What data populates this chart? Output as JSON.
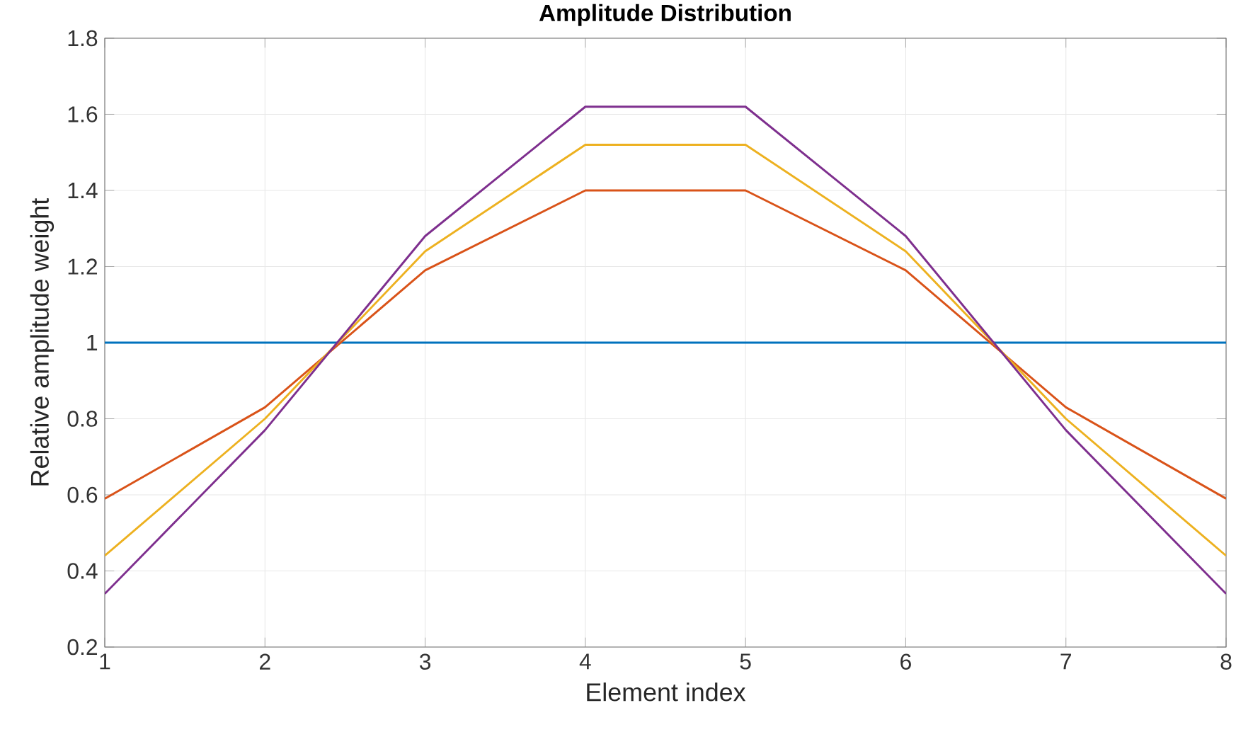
{
  "chart_data": {
    "type": "line",
    "title": "Amplitude Distribution",
    "xlabel": "Element index",
    "ylabel": "Relative amplitude weight",
    "x": [
      1,
      2,
      3,
      4,
      5,
      6,
      7,
      8
    ],
    "series": [
      {
        "color": "#0072bd",
        "values": [
          1,
          1,
          1,
          1,
          1,
          1,
          1,
          1
        ]
      },
      {
        "color": "#d95319",
        "values": [
          0.59,
          0.83,
          1.19,
          1.4,
          1.4,
          1.19,
          0.83,
          0.59
        ]
      },
      {
        "color": "#edb120",
        "values": [
          0.44,
          0.8,
          1.24,
          1.52,
          1.52,
          1.24,
          0.8,
          0.44
        ]
      },
      {
        "color": "#7e2f8e",
        "values": [
          0.34,
          0.77,
          1.28,
          1.62,
          1.62,
          1.28,
          0.77,
          0.34
        ]
      }
    ],
    "xlim": [
      1,
      8
    ],
    "ylim": [
      0.2,
      1.8
    ],
    "xticks": [
      1,
      2,
      3,
      4,
      5,
      6,
      7,
      8
    ],
    "yticks": [
      0.2,
      0.4,
      0.6,
      0.8,
      1,
      1.2,
      1.4,
      1.6,
      1.8
    ],
    "grid": true,
    "marker": "none",
    "line_style": "solid"
  }
}
